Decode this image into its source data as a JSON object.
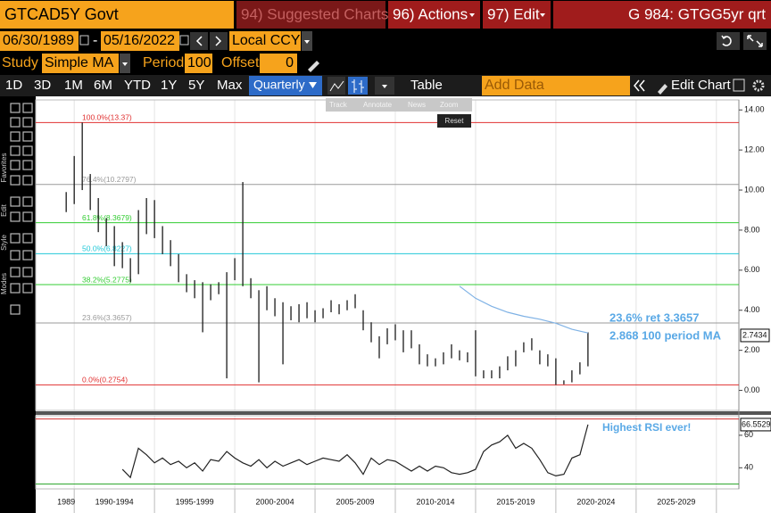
{
  "toolbar": {
    "security": "GTCAD5Y Govt",
    "suggested": "94) Suggested Charts",
    "actions": "96) Actions",
    "edit": "97) Edit",
    "chart_id": "G 984: GTGG5yr qrt",
    "start_date": "06/30/1989",
    "date_sep": "-",
    "end_date": "05/16/2022",
    "currency": "Local CCY",
    "study_label": "Study",
    "study": "Simple MA",
    "period_label": "Period",
    "period": 100,
    "offset_label": "Offset",
    "offset": 0,
    "ranges": [
      "1D",
      "3D",
      "1M",
      "6M",
      "YTD",
      "1Y",
      "5Y",
      "Max"
    ],
    "frequency": "Quarterly",
    "table": "Table",
    "add_data": "Add Data",
    "edit_chart": "Edit Chart"
  },
  "side_tabs": [
    "Favorites",
    "Edit",
    "Style",
    "Modes"
  ],
  "zoom_tools": [
    "Track",
    "Annotate",
    "News",
    "Zoom"
  ],
  "reset": "Reset",
  "chart_data": {
    "type": "hilo",
    "color": "#1a1a1a",
    "x": [
      1989.5,
      1990,
      1990.5,
      1991,
      1991.5,
      1992,
      1992.5,
      1993,
      1993.5,
      1994,
      1994.5,
      1995,
      1995.5,
      1996,
      1996.5,
      1997,
      1997.5,
      1998,
      1998.5,
      1999,
      1999.5,
      2000,
      2000.5,
      2001,
      2001.5,
      2002,
      2002.5,
      2003,
      2003.5,
      2004,
      2004.5,
      2005,
      2005.5,
      2006,
      2006.5,
      2007,
      2007.5,
      2008,
      2008.5,
      2009,
      2009.5,
      2010,
      2010.5,
      2011,
      2011.5,
      2012,
      2012.5,
      2013,
      2013.5,
      2014,
      2014.5,
      2015,
      2015.5,
      2016,
      2016.5,
      2017,
      2017.5,
      2018,
      2018.5,
      2019,
      2019.5,
      2020,
      2020.5,
      2021,
      2021.5,
      2022
    ],
    "high": [
      9.9,
      11.7,
      13.37,
      10.8,
      9.6,
      8.6,
      8.2,
      7.4,
      6.6,
      9.0,
      9.6,
      9.5,
      8.2,
      7.5,
      6.8,
      5.8,
      5.5,
      5.4,
      5.3,
      5.4,
      5.9,
      6.6,
      10.4,
      5.6,
      5.0,
      5.2,
      4.6,
      4.4,
      4.2,
      4.3,
      4.4,
      4.0,
      4.1,
      4.5,
      4.3,
      4.5,
      4.8,
      4.0,
      3.4,
      2.7,
      3.1,
      3.3,
      3.0,
      3.0,
      2.3,
      1.8,
      1.6,
      1.9,
      2.3,
      2.0,
      1.9,
      3.0,
      1.0,
      1.0,
      1.2,
      1.7,
      2.0,
      2.4,
      2.6,
      2.0,
      1.8,
      1.6,
      0.5,
      1.0,
      1.4,
      2.9
    ],
    "low": [
      8.9,
      9.3,
      10.0,
      9.0,
      7.9,
      7.2,
      6.2,
      6.1,
      5.4,
      5.8,
      7.8,
      7.6,
      6.8,
      6.2,
      5.4,
      4.9,
      4.6,
      2.9,
      4.5,
      4.8,
      0.6,
      5.5,
      5.2,
      4.6,
      0.4,
      4.0,
      3.7,
      1.3,
      3.5,
      3.4,
      3.6,
      3.4,
      3.6,
      3.9,
      3.8,
      4.0,
      4.1,
      3.0,
      2.4,
      1.6,
      2.3,
      2.5,
      1.9,
      2.1,
      1.3,
      1.2,
      1.2,
      1.3,
      1.6,
      1.5,
      1.4,
      0.7,
      0.6,
      0.6,
      0.6,
      1.0,
      1.2,
      1.9,
      2.0,
      1.3,
      1.2,
      0.2754,
      0.3,
      0.4,
      0.8,
      1.2
    ],
    "last_price": 2.7434,
    "ma": {
      "x": [
        2014,
        2015,
        2016,
        2017,
        2018,
        2019,
        2020,
        2021,
        2022
      ],
      "values": [
        5.2,
        4.6,
        4.2,
        3.9,
        3.7,
        3.55,
        3.35,
        3.05,
        2.868
      ],
      "color": "#7fb2e5"
    },
    "fib_levels": [
      {
        "label": "100.0%(13.37)",
        "value": 13.37,
        "color": "#e03030"
      },
      {
        "label": "76.4%(10.2797)",
        "value": 10.2797,
        "color": "#9a9a9a"
      },
      {
        "label": "61.8%(8.3679)",
        "value": 8.3679,
        "color": "#33cc33"
      },
      {
        "label": "50.0%(6.8227)",
        "value": 6.8227,
        "color": "#22c8d8"
      },
      {
        "label": "38.2%(5.2775)",
        "value": 5.2775,
        "color": "#33cc33"
      },
      {
        "label": "23.6%(3.3657)",
        "value": 3.3657,
        "color": "#9a9a9a"
      },
      {
        "label": "0.0%(0.2754)",
        "value": 0.2754,
        "color": "#e03030"
      }
    ],
    "annotations": [
      "23.6% ret 3.3657",
      "2.868 100 period MA"
    ],
    "annotation_color": "#5aa9e6",
    "xlim": [
      1987.6,
      2031.4
    ],
    "xticks": [
      1990,
      1995,
      2000,
      2005,
      2010,
      2015,
      2020,
      2025,
      2030
    ],
    "xgrid": true,
    "xlabels": [
      {
        "value": 1989.5,
        "label": "1989"
      },
      {
        "value": 1992.5,
        "label": "1990-1994"
      },
      {
        "value": 1997.5,
        "label": "1995-1999"
      },
      {
        "value": 2002.5,
        "label": "2000-2004"
      },
      {
        "value": 2007.5,
        "label": "2005-2009"
      },
      {
        "value": 2012.5,
        "label": "2010-2014"
      },
      {
        "value": 2017.5,
        "label": "2015-2019"
      },
      {
        "value": 2022.5,
        "label": "2020-2024"
      },
      {
        "value": 2027.5,
        "label": "2025-2029"
      }
    ],
    "ylim": [
      -1,
      14.5
    ],
    "yticks": [
      {
        "value": 0,
        "label": "0.00"
      },
      {
        "value": 2,
        "label": "2.00"
      },
      {
        "value": 4,
        "label": "4.00"
      },
      {
        "value": 6,
        "label": "6.00"
      },
      {
        "value": 8,
        "label": "8.00"
      },
      {
        "value": 10,
        "label": "10.00"
      },
      {
        "value": 12,
        "label": "12.00"
      },
      {
        "value": 14,
        "label": "14.00"
      }
    ],
    "rsi": {
      "values": [
        null,
        null,
        null,
        null,
        null,
        null,
        null,
        39,
        34,
        52,
        48,
        43,
        46,
        42,
        44,
        40,
        43,
        38,
        45,
        44,
        50,
        46,
        43,
        41,
        45,
        40,
        44,
        41,
        43,
        45,
        42,
        44,
        46,
        45,
        44,
        48,
        43,
        36,
        46,
        42,
        45,
        44,
        41,
        38,
        41,
        38,
        41,
        40,
        37,
        36,
        37,
        39,
        50,
        54,
        56,
        60,
        52,
        55,
        52,
        45,
        37,
        35,
        36,
        46,
        48,
        66.5529
      ],
      "color": "#222",
      "ylim": [
        27,
        72
      ],
      "yticks": [
        40,
        60
      ],
      "bands": [
        {
          "value": 70,
          "color": "#d43030"
        },
        {
          "value": 30,
          "color": "#2fa82f"
        }
      ],
      "annotation": "Highest RSI ever!"
    }
  }
}
